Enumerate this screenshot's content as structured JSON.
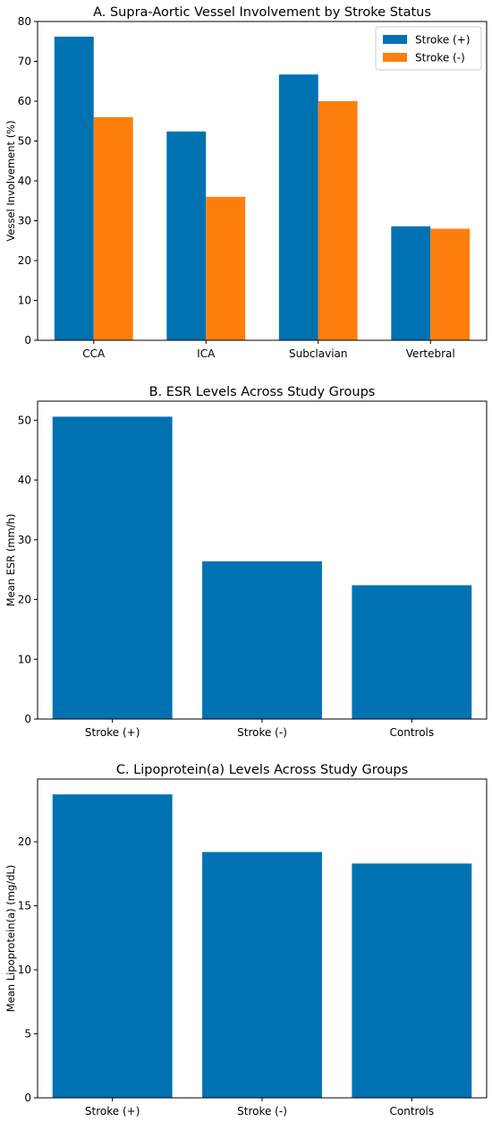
{
  "colors": {
    "stroke_pos": "#0072B2",
    "stroke_neg": "#FF7F0E"
  },
  "chart_data": [
    {
      "type": "bar",
      "title": "A. Supra-Aortic Vessel Involvement by Stroke Status",
      "xlabel": "",
      "ylabel": "Vessel Involvement (%)",
      "categories": [
        "CCA",
        "ICA",
        "Subclavian",
        "Vertebral"
      ],
      "series": [
        {
          "name": "Stroke (+)",
          "values": [
            76.2,
            52.4,
            66.7,
            28.6
          ],
          "color": "#0072B2"
        },
        {
          "name": "Stroke (-)",
          "values": [
            56.0,
            36.0,
            60.0,
            28.0
          ],
          "color": "#FF7F0E"
        }
      ],
      "ylim": [
        0,
        80
      ],
      "yticks": [
        "0",
        "10",
        "20",
        "30",
        "40",
        "50",
        "60",
        "70",
        "80"
      ],
      "legend": "top-right",
      "grid": false
    },
    {
      "type": "bar",
      "title": "B. ESR Levels Across Study Groups",
      "xlabel": "",
      "ylabel": "Mean ESR (mm/h)",
      "categories": [
        "Stroke (+)",
        "Stroke (-)",
        "Controls"
      ],
      "series": [
        {
          "values": [
            50.6,
            26.4,
            22.4
          ],
          "color": "#0072B2"
        }
      ],
      "ylim": [
        0,
        53.2
      ],
      "yticks": [
        "0",
        "10",
        "20",
        "30",
        "40",
        "50"
      ],
      "grid": false
    },
    {
      "type": "bar",
      "title": "C. Lipoprotein(a) Levels Across Study Groups",
      "xlabel": "",
      "ylabel": "Mean Lipoprotein(a) (mg/dL)",
      "categories": [
        "Stroke (+)",
        "Stroke (-)",
        "Controls"
      ],
      "series": [
        {
          "values": [
            23.7,
            19.2,
            18.3
          ],
          "color": "#0072B2"
        }
      ],
      "ylim": [
        0,
        24.9
      ],
      "yticks": [
        "0",
        "5",
        "10",
        "15",
        "20"
      ],
      "grid": false
    }
  ]
}
